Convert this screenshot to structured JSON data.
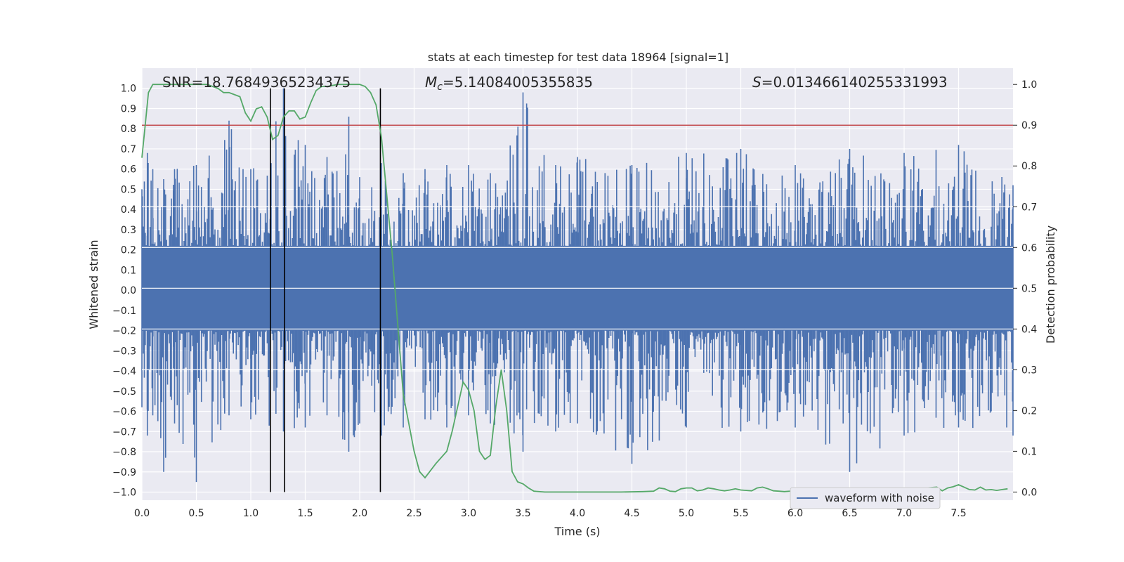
{
  "chart_data": {
    "type": "line",
    "title": "stats at each timestep for test data 18964 [signal=1]",
    "xlabel": "Time (s)",
    "ylabel_left": "Whitened strain",
    "ylabel_right": "Detection probability",
    "xlim": [
      0.0,
      8.0
    ],
    "ylim_left": [
      -1.04,
      1.1
    ],
    "ylim_right": [
      -0.02,
      1.04
    ],
    "x_ticks": [
      "0.0",
      "0.5",
      "1.0",
      "1.5",
      "2.0",
      "2.5",
      "3.0",
      "3.5",
      "4.0",
      "4.5",
      "5.0",
      "5.5",
      "6.0",
      "6.5",
      "7.0",
      "7.5"
    ],
    "y_ticks_left": [
      "1.0",
      "0.9",
      "0.8",
      "0.7",
      "0.6",
      "0.5",
      "0.4",
      "0.3",
      "0.2",
      "0.1",
      "0.0",
      "−0.1",
      "−0.2",
      "−0.3",
      "−0.4",
      "−0.5",
      "−0.6",
      "−0.7",
      "−0.8",
      "−0.9",
      "−1.0"
    ],
    "y_ticks_right": [
      "1.0",
      "0.9",
      "0.8",
      "0.7",
      "0.6",
      "0.5",
      "0.4",
      "0.3",
      "0.2",
      "0.1",
      "0.0"
    ],
    "annotations": {
      "snr": "SNR=18.76849365234375",
      "mc_symbol": "M",
      "mc_sub": "c",
      "mc_value": "=5.14084005355835",
      "s_symbol": "S",
      "s_value": "=0.013466140255331993"
    },
    "legend": {
      "label": "waveform with noise",
      "position": "lower-right"
    },
    "threshold_right": 0.9,
    "vertical_lines_x": [
      1.18,
      1.31,
      2.19
    ],
    "strain_envelope": {
      "x": [
        0.0,
        0.05,
        0.1,
        0.2,
        0.3,
        0.5,
        0.8,
        1.0,
        1.3,
        1.5,
        1.7,
        1.9,
        2.0,
        2.2,
        2.4,
        2.6,
        2.8,
        3.0,
        3.2,
        3.5,
        3.8,
        4.0,
        4.5,
        5.0,
        5.5,
        6.0,
        6.5,
        7.0,
        7.5,
        8.0
      ],
      "upper": [
        0.5,
        0.68,
        0.6,
        0.55,
        0.6,
        0.62,
        0.84,
        0.6,
        1.0,
        0.72,
        0.66,
        0.86,
        0.56,
        0.63,
        0.58,
        0.6,
        0.62,
        0.62,
        0.58,
        0.98,
        0.62,
        0.66,
        0.62,
        0.68,
        0.7,
        0.62,
        0.7,
        0.68,
        0.72,
        0.52
      ],
      "lower": [
        -0.58,
        -0.72,
        -0.62,
        -0.9,
        -0.66,
        -0.95,
        -0.62,
        -0.64,
        -0.7,
        -0.68,
        -0.62,
        -0.8,
        -0.66,
        -0.72,
        -0.68,
        -0.64,
        -0.68,
        -0.62,
        -0.66,
        -0.8,
        -0.7,
        -0.66,
        -0.86,
        -0.68,
        -0.7,
        -0.68,
        -0.9,
        -0.72,
        -0.68,
        -0.72
      ]
    },
    "series": [
      {
        "name": "",
        "axis": "right",
        "color": "#55a868",
        "x": [
          0.0,
          0.03,
          0.06,
          0.1,
          0.15,
          0.2,
          0.3,
          0.4,
          0.5,
          0.6,
          0.7,
          0.75,
          0.8,
          0.9,
          0.95,
          1.0,
          1.05,
          1.1,
          1.15,
          1.2,
          1.25,
          1.3,
          1.35,
          1.4,
          1.45,
          1.5,
          1.55,
          1.6,
          1.65,
          1.7,
          1.8,
          1.9,
          2.0,
          2.05,
          2.1,
          2.15,
          2.2,
          2.3,
          2.4,
          2.5,
          2.55,
          2.6,
          2.7,
          2.8,
          2.85,
          2.95,
          3.0,
          3.05,
          3.1,
          3.15,
          3.2,
          3.25,
          3.3,
          3.35,
          3.4,
          3.45,
          3.5,
          3.55,
          3.6,
          3.7,
          3.8,
          4.0,
          4.2,
          4.4,
          4.6,
          4.7,
          4.75,
          4.8,
          4.85,
          4.9,
          4.95,
          5.0,
          5.05,
          5.1,
          5.15,
          5.2,
          5.25,
          5.3,
          5.35,
          5.4,
          5.45,
          5.5,
          5.55,
          5.6,
          5.65,
          5.7,
          5.75,
          5.8,
          5.85,
          5.9,
          6.0,
          6.2,
          6.4,
          6.6,
          6.8,
          7.0,
          7.1,
          7.2,
          7.3,
          7.35,
          7.4,
          7.45,
          7.5,
          7.55,
          7.6,
          7.65,
          7.7,
          7.75,
          7.8,
          7.85,
          7.9,
          7.95
        ],
        "y": [
          0.82,
          0.9,
          0.98,
          1.0,
          1.0,
          1.0,
          1.0,
          1.0,
          1.0,
          1.0,
          0.99,
          0.98,
          0.98,
          0.97,
          0.93,
          0.91,
          0.94,
          0.945,
          0.92,
          0.865,
          0.875,
          0.92,
          0.935,
          0.935,
          0.915,
          0.92,
          0.955,
          0.985,
          0.995,
          0.995,
          1.0,
          1.0,
          1.0,
          0.995,
          0.98,
          0.95,
          0.87,
          0.58,
          0.24,
          0.1,
          0.05,
          0.035,
          0.07,
          0.1,
          0.15,
          0.27,
          0.25,
          0.2,
          0.1,
          0.08,
          0.09,
          0.21,
          0.3,
          0.2,
          0.05,
          0.025,
          0.02,
          0.01,
          0.002,
          0.0,
          0.0,
          0.0,
          0.0,
          0.0,
          0.001,
          0.002,
          0.01,
          0.008,
          0.002,
          0.001,
          0.008,
          0.01,
          0.01,
          0.003,
          0.005,
          0.01,
          0.008,
          0.005,
          0.003,
          0.005,
          0.008,
          0.005,
          0.004,
          0.003,
          0.01,
          0.012,
          0.008,
          0.003,
          0.002,
          0.001,
          0.003,
          0.003,
          0.003,
          0.003,
          0.003,
          0.002,
          0.003,
          0.01,
          0.012,
          0.003,
          0.01,
          0.013,
          0.018,
          0.012,
          0.006,
          0.005,
          0.012,
          0.005,
          0.006,
          0.004,
          0.006,
          0.008
        ]
      }
    ]
  }
}
